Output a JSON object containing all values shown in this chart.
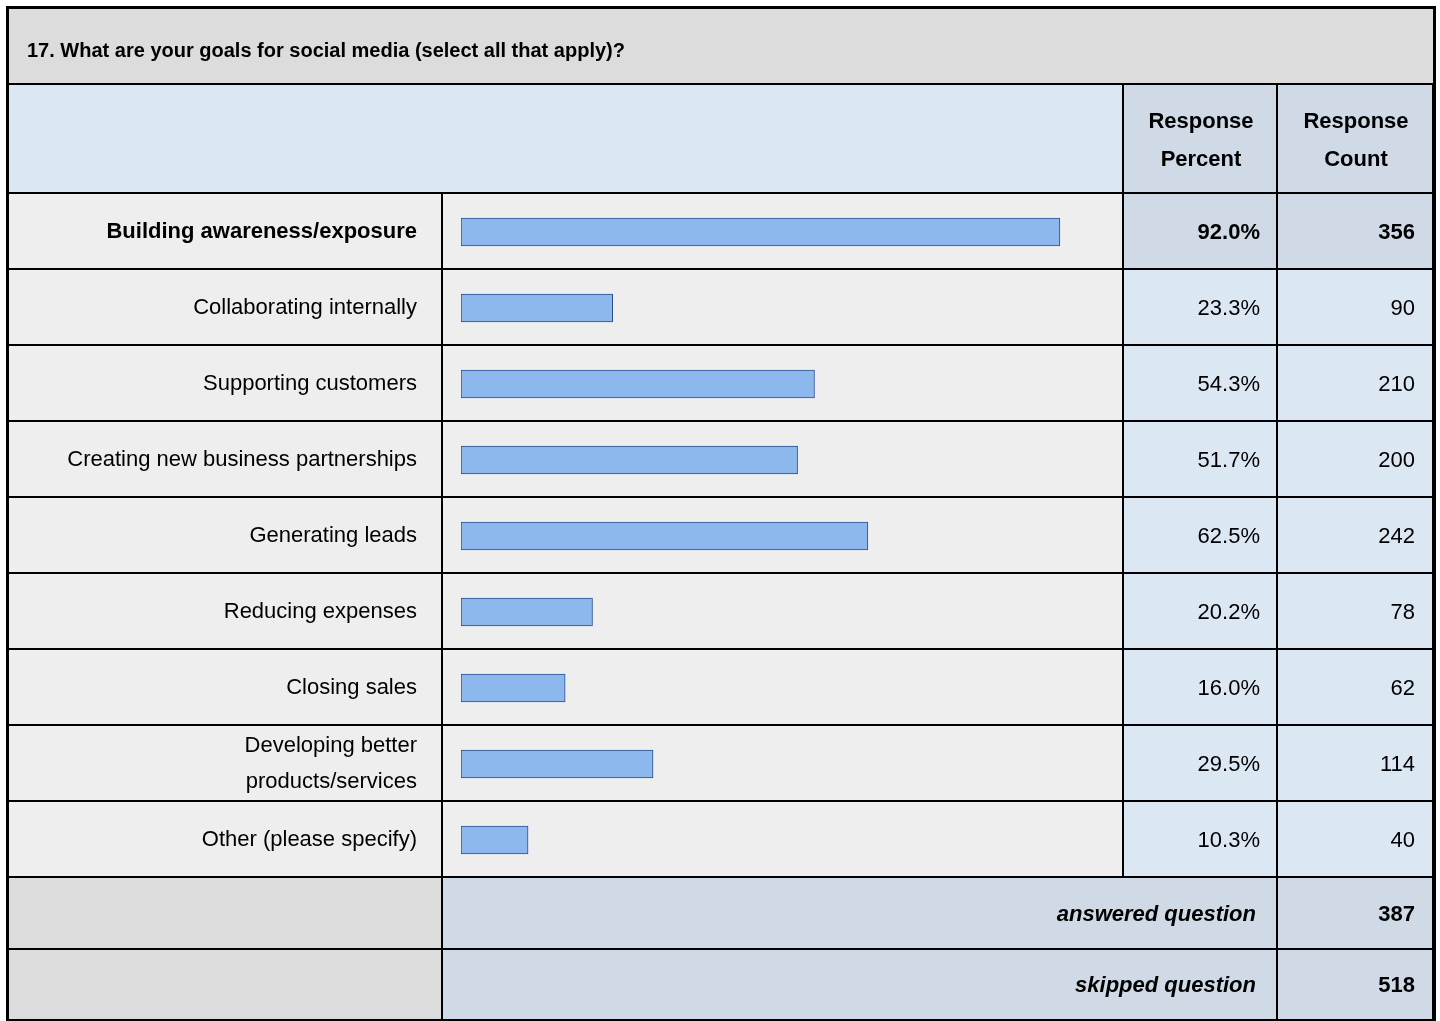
{
  "chart_data": {
    "type": "bar",
    "orientation": "horizontal",
    "title": "17. What are your goals for social media (select all that apply)?",
    "categories": [
      "Building awareness/exposure",
      "Collaborating internally",
      "Supporting customers",
      "Creating new business partnerships",
      "Generating leads",
      "Reducing expenses",
      "Closing sales",
      "Developing better\nproducts/services",
      "Other (please specify)"
    ],
    "values": [
      92.0,
      23.3,
      54.3,
      51.7,
      62.5,
      20.2,
      16.0,
      29.5,
      10.3
    ],
    "value_labels": [
      "92.0%",
      "23.3%",
      "54.3%",
      "51.7%",
      "62.5%",
      "20.2%",
      "16.0%",
      "29.5%",
      "10.3%"
    ],
    "color": "#8db8ee",
    "tick_labels": "y",
    "annotations": [
      "Response Percent",
      "Response Count",
      "answered question",
      "387",
      "skipped question",
      "518",
      "356",
      "90",
      "210",
      "200",
      "242",
      "78",
      "62",
      "114",
      "40"
    ]
  }
}
